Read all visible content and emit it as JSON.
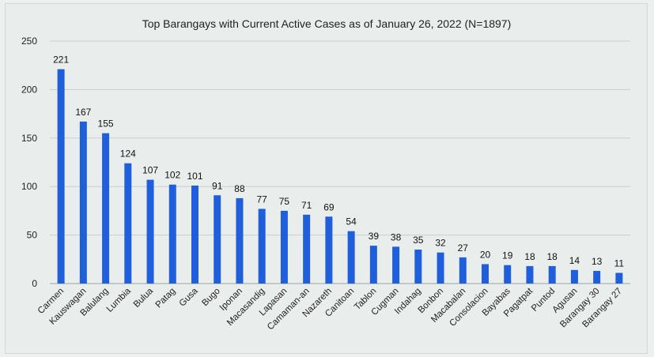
{
  "chart_data": {
    "type": "bar",
    "title": "Top Barangays with Current Active Cases as of January 26, 2022 (N=1897)",
    "categories": [
      "Carmen",
      "Kauswagan",
      "Balulang",
      "Lumbia",
      "Bulua",
      "Patag",
      "Gusa",
      "Bugo",
      "Iponan",
      "Macasandig",
      "Lapasan",
      "Camaman-an",
      "Nazareth",
      "Canitoan",
      "Tablon",
      "Cugman",
      "Indahag",
      "Bonbon",
      "Macabalan",
      "Consolacion",
      "Bayabas",
      "Pagatpat",
      "Puntod",
      "Agusan",
      "Barangay 30",
      "Barangay 27"
    ],
    "values": [
      221,
      167,
      155,
      124,
      107,
      102,
      101,
      91,
      88,
      77,
      75,
      71,
      69,
      54,
      39,
      38,
      35,
      32,
      27,
      20,
      19,
      18,
      18,
      14,
      13,
      11
    ],
    "yticks": [
      0,
      50,
      100,
      150,
      200,
      250
    ],
    "ylim": [
      0,
      250
    ],
    "bar_color": "#1f5fdc",
    "grid": true,
    "legend": "none"
  }
}
